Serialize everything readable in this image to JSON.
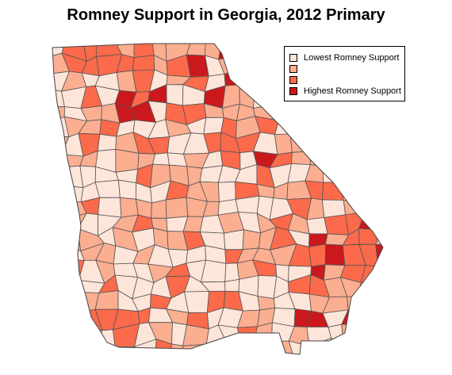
{
  "title": "Romney Support in Georgia, 2012 Primary",
  "legend": {
    "items": [
      {
        "label": "Lowest Romney Support",
        "color": "#FEE5D9"
      },
      {
        "label": "",
        "color": "#FCAE91"
      },
      {
        "label": "",
        "color": "#FB6A4A"
      },
      {
        "label": "Highest Romney Support",
        "color": "#CB181D"
      }
    ]
  },
  "map": {
    "region": "Georgia",
    "unit": "county",
    "border_color": "#555555"
  }
}
